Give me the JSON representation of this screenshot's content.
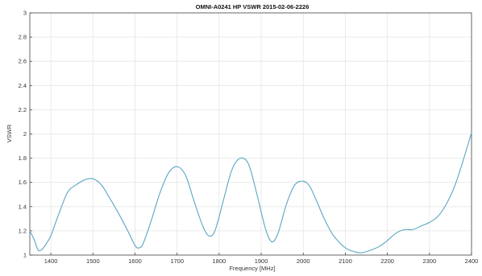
{
  "chart_data": {
    "type": "line",
    "title": "OMNI-A0241 HP VSWR 2015-02-06-2226",
    "xlabel": "Frequency [MHz]",
    "ylabel": "VSWR",
    "xlim": [
      1350,
      2400
    ],
    "ylim": [
      1,
      3
    ],
    "xticks": [
      1400,
      1500,
      1600,
      1700,
      1800,
      1900,
      2000,
      2100,
      2200,
      2300,
      2400
    ],
    "yticks": [
      1,
      1.2,
      1.4,
      1.6,
      1.8,
      2,
      2.2,
      2.4,
      2.6,
      2.8,
      3
    ],
    "ytick_labels": [
      "1",
      "1.2",
      "1.4",
      "1.6",
      "1.8",
      "2",
      "2.2",
      "2.4",
      "2.6",
      "2.8",
      "3"
    ],
    "grid": true,
    "line_color": "#5aa6c4",
    "series": [
      {
        "x": [
          1350,
          1360,
          1370,
          1380,
          1390,
          1400,
          1420,
          1440,
          1460,
          1480,
          1500,
          1520,
          1540,
          1560,
          1580,
          1600,
          1610,
          1620,
          1640,
          1660,
          1680,
          1700,
          1720,
          1740,
          1760,
          1775,
          1790,
          1810,
          1830,
          1850,
          1870,
          1890,
          1910,
          1925,
          1940,
          1960,
          1980,
          2000,
          2015,
          2030,
          2050,
          2070,
          2090,
          2100,
          2110,
          2120,
          2130,
          2140,
          2160,
          2180,
          2200,
          2220,
          2240,
          2260,
          2280,
          2300,
          2320,
          2340,
          2360,
          2380,
          2400
        ],
        "y": [
          1.2,
          1.13,
          1.04,
          1.05,
          1.1,
          1.16,
          1.35,
          1.52,
          1.58,
          1.62,
          1.63,
          1.58,
          1.47,
          1.35,
          1.22,
          1.08,
          1.06,
          1.1,
          1.3,
          1.52,
          1.68,
          1.73,
          1.66,
          1.45,
          1.25,
          1.16,
          1.2,
          1.45,
          1.7,
          1.8,
          1.75,
          1.5,
          1.22,
          1.11,
          1.18,
          1.42,
          1.58,
          1.61,
          1.57,
          1.46,
          1.3,
          1.17,
          1.09,
          1.06,
          1.04,
          1.03,
          1.02,
          1.02,
          1.04,
          1.07,
          1.12,
          1.18,
          1.21,
          1.21,
          1.24,
          1.27,
          1.32,
          1.42,
          1.57,
          1.78,
          2.01
        ]
      }
    ]
  }
}
